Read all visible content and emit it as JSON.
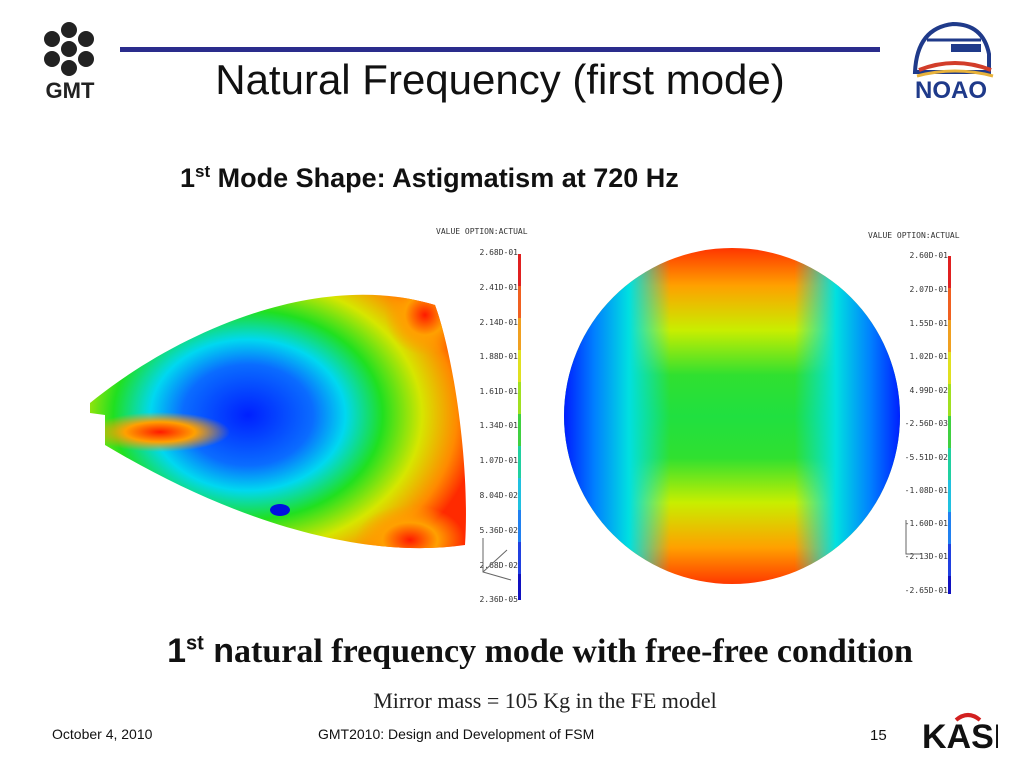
{
  "header": {
    "title": "Natural Frequency (first mode)",
    "gmt_logo_text": "GMT",
    "noao_logo_text": "NOAO"
  },
  "subtitle": {
    "prefix": "1",
    "sup": "st",
    "rest": " Mode Shape: Astigmatism at 720 Hz"
  },
  "legend_left": {
    "title": "VALUE OPTION:ACTUAL",
    "labels": [
      "2.68D-01",
      "2.41D-01",
      "2.14D-01",
      "1.88D-01",
      "1.61D-01",
      "1.34D-01",
      "1.07D-01",
      "8.04D-02",
      "5.36D-02",
      "2.68D-02",
      "2.36D-05"
    ]
  },
  "legend_right": {
    "title": "VALUE OPTION:ACTUAL",
    "labels": [
      "2.60D-01",
      "2.07D-01",
      "1.55D-01",
      "1.02D-01",
      "4.99D-02",
      "-2.56D-03",
      "-5.51D-02",
      "-1.08D-01",
      "-1.60D-01",
      "-2.13D-01",
      "-2.65D-01"
    ]
  },
  "caption": {
    "prefix": "1",
    "sup": "st",
    "n": " n",
    "rest": "atural frequency mode with free-free condition"
  },
  "mass_note": "Mirror mass = 105 Kg in the FE model",
  "footer": {
    "date": "October 4, 2010",
    "conference": "GMT2010: Design and Development of FSM",
    "page": "15",
    "kasi_logo_text": "KASI"
  },
  "colors": {
    "title_rule": "#2a2c8c",
    "noao_blue": "#1f3a8a",
    "kasi_red": "#d22020"
  }
}
